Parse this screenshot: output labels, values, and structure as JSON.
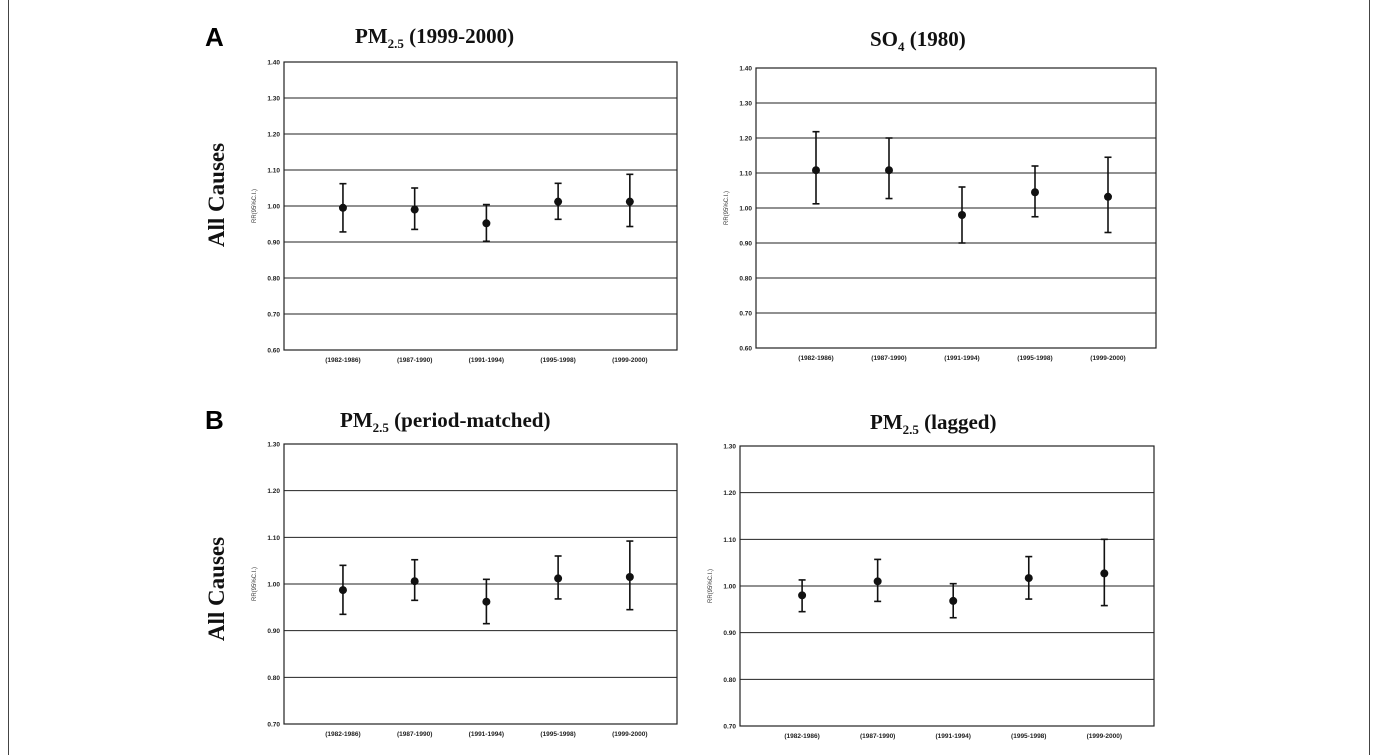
{
  "panels": [
    {
      "letter": "A",
      "row_label": "All Causes"
    },
    {
      "letter": "B",
      "row_label": "All Causes"
    }
  ],
  "chart_data": [
    {
      "type": "scatter",
      "title": {
        "main": "PM",
        "sub": "2.5",
        "rest": " (1999-2000)"
      },
      "ylabel": "RR(95%C.I.)",
      "ylim": [
        0.6,
        1.4
      ],
      "yticks": [
        "0.60",
        "0.70",
        "0.80",
        "0.90",
        "1.00",
        "1.10",
        "1.20",
        "1.30",
        "1.40"
      ],
      "categories": [
        "(1982-1986)",
        "(1987-1990)",
        "(1991-1994)",
        "(1995-1998)",
        "(1999-2000)"
      ],
      "values": [
        0.995,
        0.99,
        0.952,
        1.012,
        1.012
      ],
      "lower": [
        0.928,
        0.935,
        0.902,
        0.963,
        0.943
      ],
      "upper": [
        1.062,
        1.05,
        1.004,
        1.063,
        1.088
      ]
    },
    {
      "type": "scatter",
      "title": {
        "main": "SO",
        "sub": "4",
        "rest": " (1980)"
      },
      "ylabel": "RR(95%C.I.)",
      "ylim": [
        0.6,
        1.4
      ],
      "yticks": [
        "0.60",
        "0.70",
        "0.80",
        "0.90",
        "1.00",
        "1.10",
        "1.20",
        "1.30",
        "1.40"
      ],
      "ytick_labels_shown": [
        "0.60",
        "0.70",
        "0.80",
        "0.90",
        "1.00",
        "1.10",
        "1.20",
        "1.30",
        "1.40"
      ],
      "categories": [
        "(1982-1986)",
        "(1987-1990)",
        "(1991-1994)",
        "(1995-1998)",
        "(1999-2000)"
      ],
      "values": [
        1.108,
        1.108,
        0.98,
        1.045,
        1.032
      ],
      "lower": [
        1.012,
        1.027,
        0.9,
        0.975,
        0.93
      ],
      "upper": [
        1.218,
        1.2,
        1.06,
        1.12,
        1.145
      ]
    },
    {
      "type": "scatter",
      "title": {
        "main": "PM",
        "sub": "2.5",
        "rest": " (period-matched)"
      },
      "ylabel": "RR(95%C.I.)",
      "ylim": [
        0.7,
        1.3
      ],
      "yticks": [
        "0.70",
        "0.80",
        "0.90",
        "1.00",
        "1.10",
        "1.20",
        "1.30"
      ],
      "categories": [
        "(1982-1986)",
        "(1987-1990)",
        "(1991-1994)",
        "(1995-1998)",
        "(1999-2000)"
      ],
      "values": [
        0.987,
        1.006,
        0.962,
        1.012,
        1.015
      ],
      "lower": [
        0.935,
        0.965,
        0.915,
        0.968,
        0.945
      ],
      "upper": [
        1.04,
        1.052,
        1.01,
        1.06,
        1.092
      ]
    },
    {
      "type": "scatter",
      "title": {
        "main": "PM",
        "sub": "2.5",
        "rest": " (lagged)"
      },
      "ylabel": "RR(95%C.I.)",
      "ylim": [
        0.7,
        1.3
      ],
      "yticks": [
        "0.70",
        "0.80",
        "0.90",
        "1.00",
        "1.10",
        "1.20",
        "1.30"
      ],
      "categories": [
        "(1982-1986)",
        "(1987-1990)",
        "(1991-1994)",
        "(1995-1998)",
        "(1999-2000)"
      ],
      "values": [
        0.98,
        1.01,
        0.968,
        1.017,
        1.027
      ],
      "lower": [
        0.945,
        0.967,
        0.932,
        0.972,
        0.958
      ],
      "upper": [
        1.013,
        1.057,
        1.005,
        1.063,
        1.1
      ]
    }
  ]
}
